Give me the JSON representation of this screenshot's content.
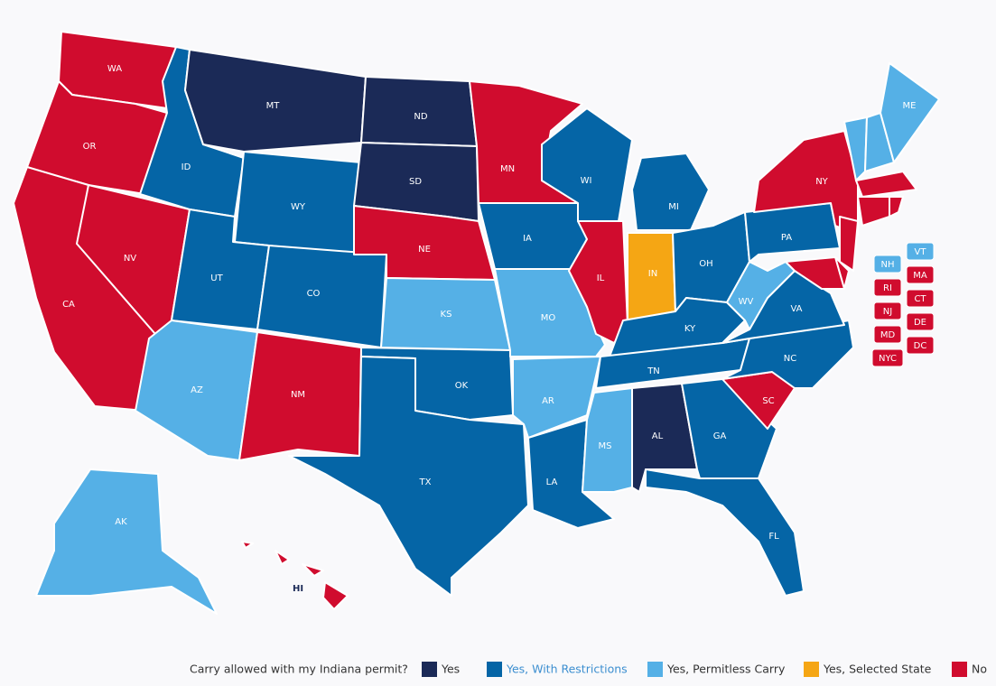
{
  "states": [
    {
      "label": "WA",
      "status": 4
    },
    {
      "label": "OR",
      "status": 4
    },
    {
      "label": "CA",
      "status": 4
    },
    {
      "label": "NV",
      "status": 4
    },
    {
      "label": "ID",
      "status": 1
    },
    {
      "label": "MT",
      "status": 0
    },
    {
      "label": "WY",
      "status": 1
    },
    {
      "label": "UT",
      "status": 1
    },
    {
      "label": "CO",
      "status": 1
    },
    {
      "label": "AZ",
      "status": 2
    },
    {
      "label": "NM",
      "status": 4
    },
    {
      "label": "ND",
      "status": 0
    },
    {
      "label": "SD",
      "status": 0
    },
    {
      "label": "NE",
      "status": 4
    },
    {
      "label": "KS",
      "status": 2
    },
    {
      "label": "OK",
      "status": 1
    },
    {
      "label": "TX",
      "status": 1
    },
    {
      "label": "MN",
      "status": 4
    },
    {
      "label": "IA",
      "status": 1
    },
    {
      "label": "MO",
      "status": 2
    },
    {
      "label": "AR",
      "status": 2
    },
    {
      "label": "LA",
      "status": 1
    },
    {
      "label": "WI",
      "status": 1
    },
    {
      "label": "IL",
      "status": 4
    },
    {
      "label": "MI",
      "status": 1
    },
    {
      "label": "IN",
      "status": 3
    },
    {
      "label": "OH",
      "status": 1
    },
    {
      "label": "KY",
      "status": 1
    },
    {
      "label": "TN",
      "status": 1
    },
    {
      "label": "MS",
      "status": 2
    },
    {
      "label": "AL",
      "status": 0
    },
    {
      "label": "GA",
      "status": 1
    },
    {
      "label": "FL",
      "status": 1
    },
    {
      "label": "SC",
      "status": 4
    },
    {
      "label": "NC",
      "status": 1
    },
    {
      "label": "VA",
      "status": 1
    },
    {
      "label": "WV",
      "status": 2
    },
    {
      "label": "PA",
      "status": 1
    },
    {
      "label": "NY",
      "status": 4
    },
    {
      "label": "VT",
      "status": 2
    },
    {
      "label": "NH",
      "status": 2
    },
    {
      "label": "ME",
      "status": 2
    },
    {
      "label": "MA",
      "status": 4
    },
    {
      "label": "CT",
      "status": 4
    },
    {
      "label": "RI",
      "status": 4
    },
    {
      "label": "NJ",
      "status": 4
    },
    {
      "label": "DE",
      "status": 4
    },
    {
      "label": "MD",
      "status": 4
    },
    {
      "label": "AK",
      "status": 2
    },
    {
      "label": "HI",
      "status": 4
    }
  ],
  "extra_callouts": [
    {
      "label": "NYC",
      "status": 4
    },
    {
      "label": "DC",
      "status": 4
    }
  ],
  "legend": {
    "title": "Carry allowed with my Indiana permit?",
    "items": [
      {
        "label": "Yes",
        "color": "#1b2a57"
      },
      {
        "label": "Yes, With Restrictions",
        "color": "#0565a6"
      },
      {
        "label": "Yes, Permitless Carry",
        "color": "#55b0e6"
      },
      {
        "label": "Yes, Selected State",
        "color": "#f5a614"
      },
      {
        "label": "No",
        "color": "#d00c2e"
      }
    ]
  }
}
